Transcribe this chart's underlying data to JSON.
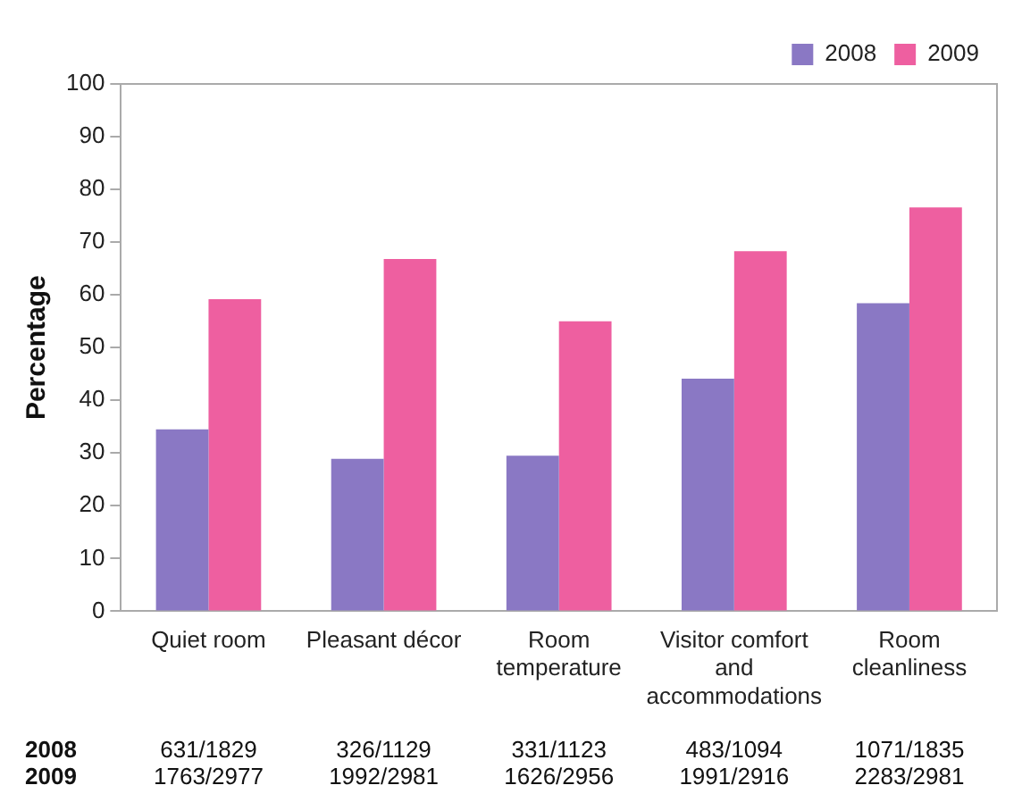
{
  "chart_data": {
    "type": "bar",
    "ylabel": "Percentage",
    "categories": [
      "Quiet room",
      "Pleasant décor",
      "Room temperature",
      "Visitor comfort and accommodations",
      "Room cleanliness"
    ],
    "series": [
      {
        "name": "2008",
        "color": "#8a78c4",
        "values": [
          34.5,
          28.9,
          29.5,
          44.1,
          58.4
        ],
        "value_labels": [
          "631/1829",
          "326/1129",
          "331/1123",
          "483/1094",
          "1071/1835"
        ]
      },
      {
        "name": "2009",
        "color": "#ee5fa0",
        "values": [
          59.2,
          66.8,
          55.0,
          68.3,
          76.6
        ],
        "value_labels": [
          "1763/2977",
          "1992/2981",
          "1626/2956",
          "1991/2916",
          "2283/2981"
        ]
      }
    ],
    "ylim": [
      0,
      100
    ],
    "yticks": [
      0,
      10,
      20,
      30,
      40,
      50,
      60,
      70,
      80,
      90,
      100
    ],
    "grid": false,
    "legend": "top right"
  }
}
